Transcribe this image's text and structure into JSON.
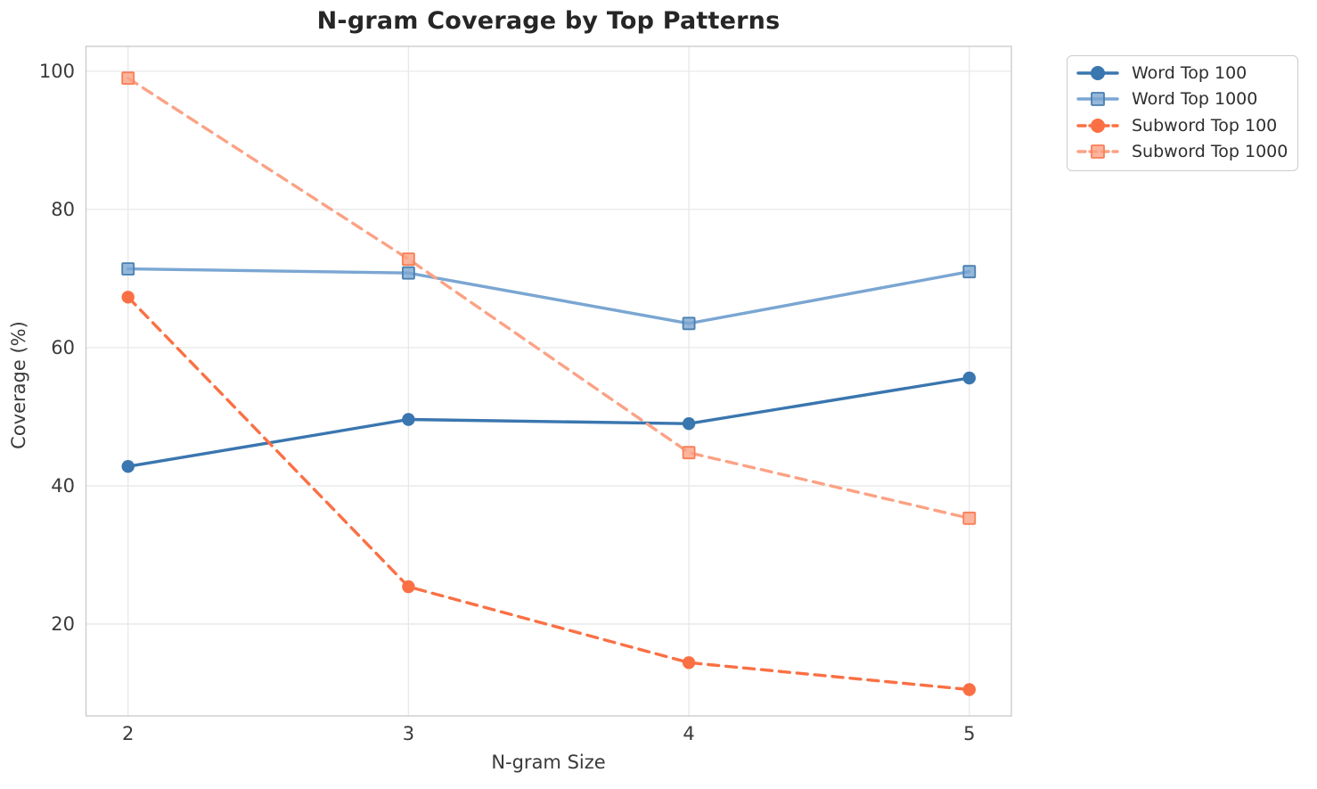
{
  "chart_data": {
    "type": "line",
    "title": "N-gram Coverage by Top Patterns",
    "xlabel": "N-gram Size",
    "ylabel": "Coverage (%)",
    "x": [
      2,
      3,
      4,
      5
    ],
    "x_ticks": [
      "2",
      "3",
      "4",
      "5"
    ],
    "y_ticks": [
      "20",
      "40",
      "60",
      "80",
      "100"
    ],
    "xlim": [
      1.85,
      5.15
    ],
    "ylim": [
      6.7,
      103.6
    ],
    "grid": true,
    "legend_position": "outside-top-right",
    "series": [
      {
        "name": "Word Top 100",
        "values": [
          42.8,
          49.6,
          49.0,
          55.6
        ],
        "color": "#3a76af",
        "marker": "circle",
        "line_style": "solid"
      },
      {
        "name": "Word Top 1000",
        "values": [
          71.4,
          70.8,
          63.5,
          71.0
        ],
        "color": "#7aa6d2",
        "marker_edge": "#4a7fb0",
        "marker": "square",
        "line_style": "solid"
      },
      {
        "name": "Subword Top 100",
        "values": [
          67.3,
          25.4,
          14.4,
          10.5
        ],
        "color": "#fa7044",
        "marker": "circle",
        "line_style": "dashed"
      },
      {
        "name": "Subword Top 1000",
        "values": [
          99.0,
          72.8,
          44.8,
          35.3
        ],
        "color": "#fba285",
        "marker_edge": "#f87f57",
        "marker": "square",
        "line_style": "dashed"
      }
    ],
    "style": {
      "grid_color": "#e8e8e8",
      "spine_color": "#cccccc",
      "title_color": "#262626",
      "tick_color": "#3a3a3a"
    }
  }
}
